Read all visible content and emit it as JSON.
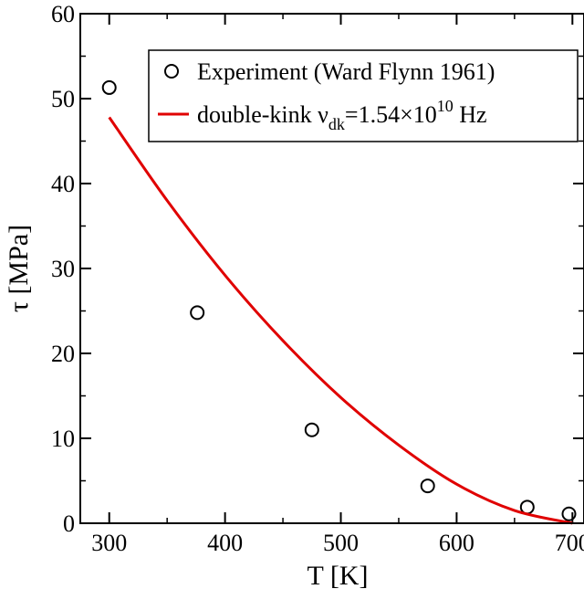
{
  "chart_data": {
    "type": "scatter",
    "xlabel": "T [K]",
    "ylabel": "τ [MPa]",
    "xlim": [
      275,
      710
    ],
    "ylim": [
      0,
      60
    ],
    "xticks": [
      300,
      400,
      500,
      600,
      700
    ],
    "yticks": [
      0,
      10,
      20,
      30,
      40,
      50,
      60
    ],
    "grid": false,
    "legend_position": "top-right",
    "series": [
      {
        "name": "Experiment (Ward Flynn 1961)",
        "kind": "scatter",
        "marker": "open-circle",
        "color": "#000000",
        "x": [
          300,
          376,
          475,
          575,
          661,
          697
        ],
        "y": [
          51.3,
          24.8,
          11.0,
          4.4,
          1.9,
          1.1
        ]
      },
      {
        "name": "double-kink ν_dk=1.54×10^10 Hz",
        "kind": "line",
        "color": "#e00000",
        "x": [
          300,
          350,
          400,
          450,
          500,
          550,
          600,
          650,
          700
        ],
        "y": [
          47.8,
          38.0,
          29.2,
          21.5,
          14.8,
          9.2,
          4.6,
          1.5,
          0.0
        ]
      }
    ],
    "legend": {
      "experiment": "Experiment (Ward Flynn 1961)",
      "model_prefix": "double-kink ν",
      "model_subscript": "dk",
      "model_mid": "=1.54×10",
      "model_superscript": "10",
      "model_suffix": " Hz"
    }
  }
}
